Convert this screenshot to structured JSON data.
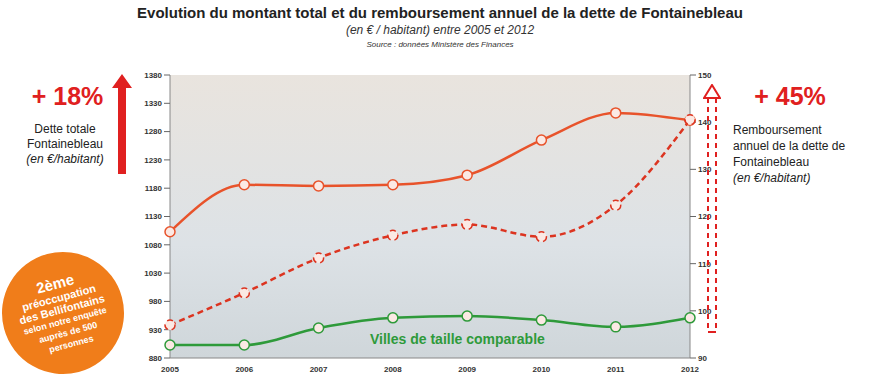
{
  "chart_data": {
    "type": "line",
    "title": "Evolution du montant total et du remboursement annuel de la dette de Fontainebleau",
    "subtitle": "(en € / habitant) entre 2005 et 2012",
    "source": "Source : données Ministère des Finances",
    "categories": [
      "2005",
      "2006",
      "2007",
      "2008",
      "2009",
      "2010",
      "2011",
      "2012"
    ],
    "series": [
      {
        "name": "Dette totale Fontainebleau",
        "color": "#e8532b",
        "line_style": "solid",
        "marker": "circle",
        "values": [
          1103,
          1186,
          1184,
          1186,
          1203,
          1265,
          1313,
          1300
        ]
      },
      {
        "name": "Remboursement annuel de la dette de Fontainebleau",
        "color": "#dc3420",
        "line_style": "dashed",
        "marker": "circle",
        "axis": "y2",
        "values": [
          97,
          103.8,
          111.2,
          116,
          118.3,
          115.7,
          122.4,
          140.5
        ]
      },
      {
        "name": "Villes de taille comparable",
        "color": "#2e9a3a",
        "line_style": "solid",
        "marker": "circle",
        "values": [
          903,
          903,
          933,
          951,
          954,
          947,
          935,
          951
        ]
      }
    ],
    "ylim": [
      880,
      1380
    ],
    "yticks": [
      880,
      930,
      980,
      1030,
      1080,
      1130,
      1180,
      1230,
      1280,
      1330,
      1380
    ],
    "y2lim": [
      90,
      150
    ],
    "y2ticks": [
      90,
      100,
      110,
      120,
      130,
      140,
      150
    ],
    "grid": false,
    "annotations": {
      "left_change": "+ 18%",
      "left_unit": "(en €/habitant)",
      "right_change": "+ 45%",
      "right_unit": "(en €/habitant)",
      "badge": [
        "2ème",
        "préoccupation",
        "des Bellifontains",
        "selon notre enquête",
        "auprès de 500",
        "personnes"
      ]
    }
  }
}
